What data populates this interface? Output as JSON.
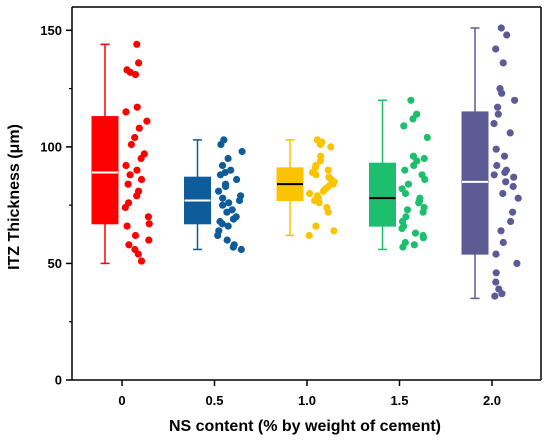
{
  "chart_data": {
    "type": "box",
    "xlabel": "NS content (% by weight of cement)",
    "ylabel": "ITZ Thickness (μm)",
    "ylim": [
      0,
      160
    ],
    "yticks": [
      0,
      50,
      100,
      150
    ],
    "grid": false,
    "legend": "none",
    "series": [
      {
        "category": "0",
        "color": "#ff0000",
        "median_color": "#ffffff",
        "whisker_low": 50,
        "q1": 67,
        "median": 89,
        "q3": 113,
        "whisker_high": 144,
        "points": [
          144,
          136,
          133,
          132,
          131,
          117,
          115,
          111,
          108,
          104,
          101,
          97,
          95,
          92,
          90,
          88,
          86,
          84,
          81,
          79,
          76,
          74,
          70,
          67,
          66,
          62,
          60,
          58,
          56,
          54,
          51
        ]
      },
      {
        "category": "0.5",
        "color": "#0e5c99",
        "median_color": "#ffffff",
        "whisker_low": 56,
        "q1": 67,
        "median": 77,
        "q3": 87,
        "whisker_high": 103,
        "points": [
          103,
          101,
          98,
          95,
          92,
          90,
          89,
          88,
          86,
          84,
          83,
          81,
          79,
          78,
          77,
          76,
          75,
          73,
          72,
          70,
          69,
          68,
          67,
          66,
          64,
          62,
          60,
          58,
          57,
          56
        ]
      },
      {
        "category": "1.0",
        "color": "#fcc300",
        "median_color": "#000000",
        "whisker_low": 62,
        "q1": 77,
        "median": 84,
        "q3": 91,
        "whisker_high": 103,
        "points": [
          103,
          102,
          102,
          101,
          100,
          96,
          94,
          92,
          91,
          90,
          89,
          88,
          87,
          86,
          85,
          84,
          84,
          83,
          82,
          81,
          80,
          79,
          78,
          77,
          76,
          74,
          72,
          66,
          64,
          62
        ]
      },
      {
        "category": "1.5",
        "color": "#1dbf6e",
        "median_color": "#000000",
        "whisker_low": 56,
        "q1": 66,
        "median": 78,
        "q3": 93,
        "whisker_high": 120,
        "points": [
          120,
          114,
          112,
          109,
          104,
          96,
          95,
          94,
          92,
          90,
          88,
          86,
          84,
          82,
          80,
          78,
          77,
          76,
          74,
          73,
          72,
          70,
          68,
          66,
          65,
          63,
          62,
          61,
          59,
          58,
          57
        ]
      },
      {
        "category": "2.0",
        "color": "#5c5b96",
        "median_color": "#ffffff",
        "whisker_low": 35,
        "q1": 54,
        "median": 85,
        "q3": 115,
        "whisker_high": 151,
        "points": [
          151,
          148,
          142,
          136,
          125,
          123,
          120,
          117,
          114,
          110,
          106,
          99,
          96,
          92,
          90,
          89,
          88,
          87,
          85,
          83,
          80,
          78,
          72,
          68,
          64,
          59,
          54,
          50,
          46,
          42,
          39,
          37,
          36
        ]
      }
    ]
  }
}
